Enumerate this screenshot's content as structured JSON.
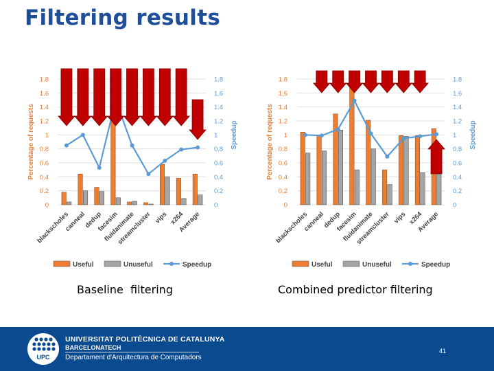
{
  "slide": {
    "title": "Filtering results",
    "captions": [
      "Baseline  filtering",
      "Combined predictor filtering"
    ]
  },
  "colors": {
    "useful": "#ed7d31",
    "unuseful": "#a5a5a5",
    "speedup": "#5b9bd5",
    "arrow": "#c00000",
    "axis_left": "#ed7d31",
    "axis_right": "#5b9bd5",
    "title": "#1f4f9b",
    "footer": "#0a4a8f"
  },
  "chart_data": [
    {
      "type": "bar",
      "title": "Baseline  filtering",
      "categories": [
        "blackscholes",
        "canneal",
        "dedup",
        "facesim",
        "fluidanimate",
        "streamcluster",
        "vips",
        "x264",
        "Average"
      ],
      "series": [
        {
          "name": "Useful",
          "kind": "bar",
          "axis": "left",
          "values": [
            0.18,
            0.44,
            0.25,
            1.7,
            0.04,
            0.03,
            0.58,
            0.38,
            0.44
          ]
        },
        {
          "name": "Unuseful",
          "kind": "bar",
          "axis": "left",
          "values": [
            0.04,
            0.2,
            0.19,
            0.1,
            0.05,
            0.01,
            0.4,
            0.09,
            0.14
          ]
        },
        {
          "name": "Speedup",
          "kind": "line",
          "axis": "right",
          "values": [
            0.85,
            1.0,
            0.53,
            1.5,
            0.85,
            0.44,
            0.63,
            0.79,
            0.82
          ]
        }
      ],
      "ylabel": "Percentage of requests",
      "y2label": "Speedup",
      "ylim": [
        0,
        1.8
      ],
      "y2lim": [
        0,
        1.8
      ],
      "yticks": [
        "0",
        "0.2",
        "0.4",
        "0.6",
        "0.8",
        "1",
        "1.2",
        "1.4",
        "1.6",
        "1.8"
      ],
      "y2ticks": [
        "0",
        "0.2",
        "0.4",
        "0.6",
        "0.8",
        "1",
        "1.2",
        "1.4",
        "1.6",
        "1.8"
      ],
      "legend": [
        "Useful",
        "Unuseful",
        "Speedup"
      ],
      "arrows": [
        {
          "category": 0,
          "direction": "down",
          "size": "long"
        },
        {
          "category": 1,
          "direction": "down",
          "size": "long"
        },
        {
          "category": 2,
          "direction": "down",
          "size": "long"
        },
        {
          "category": 3,
          "direction": "down",
          "size": "long"
        },
        {
          "category": 4,
          "direction": "down",
          "size": "long"
        },
        {
          "category": 5,
          "direction": "down",
          "size": "long"
        },
        {
          "category": 6,
          "direction": "down",
          "size": "long"
        },
        {
          "category": 7,
          "direction": "down",
          "size": "long"
        },
        {
          "category": 8,
          "direction": "down",
          "size": "medium"
        }
      ]
    },
    {
      "type": "bar",
      "title": "Combined predictor filtering",
      "categories": [
        "blackscholes",
        "canneal",
        "dedup",
        "facesim",
        "fluidanimate",
        "streamcluster",
        "vips",
        "x264",
        "Average"
      ],
      "series": [
        {
          "name": "Useful",
          "kind": "bar",
          "axis": "left",
          "values": [
            1.04,
            1.0,
            1.3,
            1.72,
            1.21,
            0.5,
            0.99,
            0.99,
            1.09
          ]
        },
        {
          "name": "Unuseful",
          "kind": "bar",
          "axis": "left",
          "values": [
            0.74,
            0.77,
            1.07,
            0.5,
            0.8,
            0.29,
            0.98,
            0.46,
            0.45
          ]
        },
        {
          "name": "Speedup",
          "kind": "line",
          "axis": "right",
          "values": [
            1.0,
            0.99,
            1.08,
            1.49,
            1.02,
            0.69,
            0.95,
            0.98,
            1.01
          ]
        }
      ],
      "ylabel": "Percentage of requests",
      "y2label": "Speedup",
      "ylim": [
        0,
        1.8
      ],
      "y2lim": [
        0,
        1.8
      ],
      "yticks": [
        "0",
        "0.2",
        "0.4",
        "0.6",
        "0.8",
        "1",
        "1.2",
        "1.4",
        "1.6",
        "1.8"
      ],
      "y2ticks": [
        "0",
        "0.2",
        "0.4",
        "0.6",
        "0.8",
        "1",
        "1.2",
        "1.4",
        "1.6",
        "1.8"
      ],
      "legend": [
        "Useful",
        "Unuseful",
        "Speedup"
      ],
      "arrows": [
        {
          "category": 1,
          "direction": "down",
          "size": "short"
        },
        {
          "category": 2,
          "direction": "down",
          "size": "short"
        },
        {
          "category": 3,
          "direction": "down",
          "size": "short"
        },
        {
          "category": 4,
          "direction": "down",
          "size": "short"
        },
        {
          "category": 5,
          "direction": "down",
          "size": "short"
        },
        {
          "category": 6,
          "direction": "down",
          "size": "short"
        },
        {
          "category": 7,
          "direction": "down",
          "size": "short"
        },
        {
          "category": 8,
          "direction": "up",
          "size": "medium"
        }
      ]
    }
  ],
  "footer": {
    "university": "UNIVERSITAT POLITÈCNICA DE CATALUNYA",
    "subtitle": "BARCELONATECH",
    "department": "Departament d'Arquitectura de Computadors",
    "logo_text": "UPC",
    "page_number": "41"
  }
}
